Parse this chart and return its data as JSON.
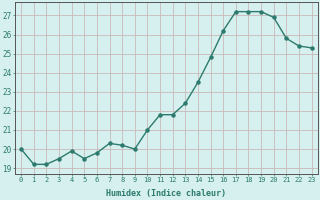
{
  "xlabel": "Humidex (Indice chaleur)",
  "x": [
    0,
    1,
    2,
    3,
    4,
    5,
    6,
    7,
    8,
    9,
    10,
    11,
    12,
    13,
    14,
    15,
    16,
    17,
    18,
    19,
    20,
    21,
    22,
    23
  ],
  "y": [
    20.0,
    19.2,
    19.2,
    19.5,
    19.9,
    19.5,
    19.8,
    20.3,
    20.2,
    20.0,
    21.0,
    21.8,
    21.8,
    22.4,
    23.5,
    24.8,
    26.2,
    27.2,
    27.2,
    27.2,
    26.9,
    25.8,
    25.4,
    25.3
  ],
  "line_color": "#2d7b6e",
  "marker_color": "#2d7b6e",
  "bg_color": "#d5f0ee",
  "grid_color": "#c8b8b8",
  "text_color": "#2d7b6e",
  "axis_color": "#555555",
  "ylim": [
    18.7,
    27.7
  ],
  "yticks": [
    19,
    20,
    21,
    22,
    23,
    24,
    25,
    26,
    27
  ],
  "figsize": [
    3.2,
    2.0
  ],
  "dpi": 100
}
